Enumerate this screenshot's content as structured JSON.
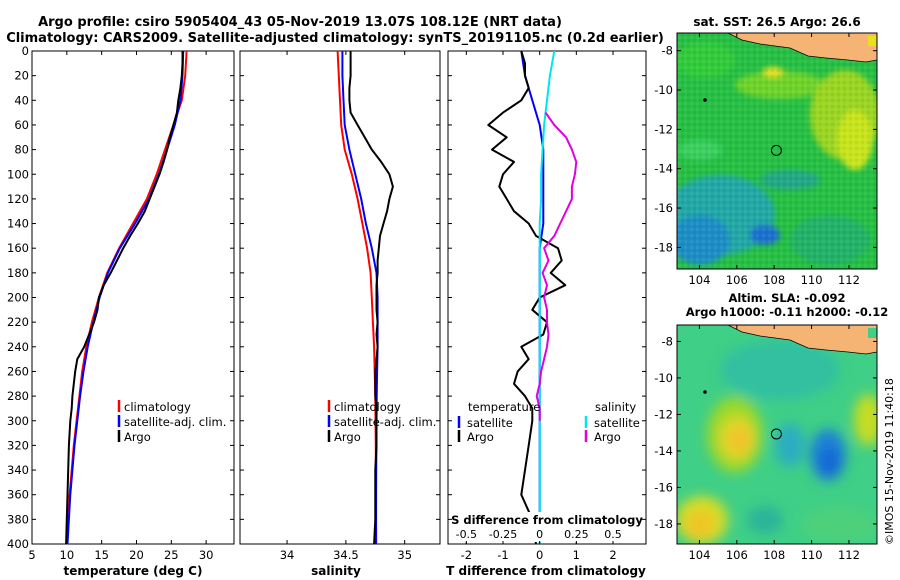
{
  "title": {
    "line1": "Argo profile: csiro 5905404_43 05-Nov-2019 13.07S 108.12E (NRT data)",
    "line2": "Climatology: CARS2009. Satellite-adjusted climatology: synTS_20191105.nc (0.2d earlier)"
  },
  "colors": {
    "climatology": "#ff0000",
    "satellite": "#0000ff",
    "argo": "#000000",
    "satellite_salinity": "#00e5ee",
    "argo_salinity": "#e000e0"
  },
  "chart_data": [
    {
      "type": "line",
      "name": "temperature",
      "xlabel": "temperature (deg C)",
      "ylabel": "",
      "xlim": [
        5,
        34
      ],
      "ylim": [
        400,
        0
      ],
      "xticks": [
        "5",
        "10",
        "15",
        "20",
        "25",
        "30"
      ],
      "yticks": [
        "0",
        "20",
        "40",
        "60",
        "80",
        "100",
        "120",
        "140",
        "160",
        "180",
        "200",
        "220",
        "240",
        "260",
        "280",
        "300",
        "320",
        "340",
        "360",
        "380",
        "400"
      ],
      "legend": [
        "climatology",
        "satellite-adj. clim.",
        "Argo"
      ],
      "series": [
        {
          "name": "climatology",
          "color": "#ff0000",
          "depth": [
            0,
            20,
            40,
            60,
            80,
            100,
            120,
            140,
            160,
            180,
            200,
            220,
            240,
            260,
            280,
            300,
            320,
            340,
            360,
            380,
            400
          ],
          "values": [
            27.2,
            27.0,
            26.5,
            25.3,
            24.1,
            22.9,
            21.5,
            19.5,
            17.5,
            15.8,
            14.6,
            13.6,
            12.8,
            12.2,
            11.8,
            11.4,
            11.0,
            10.7,
            10.4,
            10.2,
            10.0
          ]
        },
        {
          "name": "satellite-adj. clim.",
          "color": "#0000ff",
          "depth": [
            0,
            20,
            40,
            60,
            80,
            100,
            120,
            140,
            160,
            180,
            200,
            220,
            240,
            260,
            280,
            300,
            320,
            340,
            360,
            380,
            400
          ],
          "values": [
            26.7,
            26.6,
            26.3,
            25.5,
            24.4,
            23.2,
            21.8,
            19.8,
            17.6,
            15.9,
            14.7,
            13.8,
            13.0,
            12.4,
            11.9,
            11.5,
            11.1,
            10.8,
            10.5,
            10.3,
            10.1
          ]
        },
        {
          "name": "Argo",
          "color": "#000000",
          "depth": [
            0,
            10,
            20,
            30,
            40,
            50,
            60,
            70,
            80,
            90,
            100,
            110,
            120,
            130,
            140,
            150,
            160,
            170,
            180,
            190,
            200,
            210,
            220,
            230,
            240,
            250,
            260,
            270,
            280,
            290,
            300,
            320,
            340,
            360,
            380,
            400
          ],
          "values": [
            26.6,
            26.6,
            26.5,
            26.3,
            26.0,
            25.8,
            25.3,
            24.8,
            24.4,
            23.9,
            23.3,
            22.6,
            21.9,
            21.2,
            20.2,
            19.1,
            18.1,
            17.2,
            16.3,
            15.3,
            14.6,
            14.4,
            13.9,
            13.2,
            12.5,
            11.5,
            11.2,
            11.0,
            10.8,
            10.7,
            10.5,
            10.3,
            10.2,
            10.1,
            10.0,
            9.9
          ]
        }
      ]
    },
    {
      "type": "line",
      "name": "salinity",
      "xlabel": "salinity",
      "xlim": [
        33.6,
        35.3
      ],
      "ylim": [
        400,
        0
      ],
      "xticks": [
        "34",
        "34.5",
        "35"
      ],
      "legend": [
        "climatology",
        "satellite-adj. clim.",
        "Argo"
      ],
      "series": [
        {
          "name": "climatology",
          "color": "#ff0000",
          "depth": [
            0,
            20,
            40,
            60,
            80,
            100,
            120,
            140,
            160,
            180,
            200,
            220,
            240,
            260,
            280,
            300,
            320,
            340,
            360,
            380,
            400
          ],
          "values": [
            34.43,
            34.44,
            34.45,
            34.46,
            34.49,
            34.55,
            34.6,
            34.64,
            34.68,
            34.71,
            34.72,
            34.73,
            34.74,
            34.745,
            34.75,
            34.752,
            34.754,
            34.755,
            34.756,
            34.757,
            34.758
          ]
        },
        {
          "name": "satellite-adj. clim.",
          "color": "#0000ff",
          "depth": [
            0,
            20,
            40,
            60,
            80,
            100,
            120,
            140,
            160,
            180,
            200,
            220,
            240,
            260,
            280,
            300,
            320,
            340,
            360,
            380,
            400
          ],
          "values": [
            34.47,
            34.47,
            34.48,
            34.49,
            34.53,
            34.58,
            34.63,
            34.67,
            34.72,
            34.76,
            34.77,
            34.77,
            34.77,
            34.765,
            34.762,
            34.76,
            34.759,
            34.758,
            34.757,
            34.756,
            34.755
          ]
        },
        {
          "name": "Argo",
          "color": "#000000",
          "depth": [
            0,
            10,
            20,
            30,
            40,
            50,
            60,
            70,
            80,
            90,
            100,
            110,
            120,
            130,
            140,
            150,
            160,
            170,
            180,
            190,
            200,
            210,
            220,
            230,
            240,
            250,
            260,
            270,
            280,
            290,
            300,
            320,
            340,
            360,
            380,
            400
          ],
          "values": [
            34.54,
            34.54,
            34.54,
            34.53,
            34.53,
            34.54,
            34.6,
            34.66,
            34.72,
            34.8,
            34.87,
            34.9,
            34.87,
            34.85,
            34.82,
            34.79,
            34.78,
            34.77,
            34.77,
            34.76,
            34.76,
            34.76,
            34.77,
            34.76,
            34.77,
            34.76,
            34.75,
            34.75,
            34.75,
            34.76,
            34.76,
            34.76,
            34.75,
            34.75,
            34.75,
            34.74
          ]
        }
      ]
    },
    {
      "type": "line",
      "name": "differences",
      "xlabel": "T difference from climatology",
      "xlabel_top": "S difference from climatology",
      "xlim": [
        -2.5,
        2.9
      ],
      "ylim": [
        400,
        0
      ],
      "xticks": [
        "-2",
        "-1",
        "0",
        "1",
        "2"
      ],
      "xticks_top": [
        "-0.5",
        "-0.25",
        "0",
        "0.25",
        "0.5"
      ],
      "legend_temperature": {
        "title": "temperature",
        "items": [
          "satellite",
          "Argo"
        ]
      },
      "legend_salinity": {
        "title": "salinity",
        "items": [
          "satellite",
          "Argo"
        ]
      },
      "series": [
        {
          "name": "temperature satellite",
          "color": "#0000ff",
          "depth": [
            0,
            20,
            40,
            60,
            80,
            100,
            120,
            140,
            160,
            180,
            200,
            220,
            240,
            260,
            280,
            300,
            320,
            340,
            360,
            380,
            400
          ],
          "values": [
            -0.5,
            -0.4,
            -0.2,
            0.0,
            0.1,
            0.1,
            0.1,
            0.1,
            0.0,
            0.0,
            0.0,
            0.0,
            0.0,
            0.0,
            0.0,
            0.0,
            0.0,
            0.0,
            0.0,
            0.0,
            0.0
          ]
        },
        {
          "name": "temperature Argo",
          "color": "#000000",
          "depth": [
            0,
            10,
            20,
            30,
            40,
            50,
            60,
            70,
            80,
            90,
            100,
            110,
            120,
            130,
            140,
            150,
            160,
            170,
            180,
            190,
            200,
            210,
            220,
            230,
            240,
            250,
            260,
            270,
            280,
            290,
            300,
            320,
            340,
            360,
            380,
            400
          ],
          "values": [
            -0.5,
            -0.4,
            -0.4,
            -0.3,
            -0.5,
            -1.0,
            -1.4,
            -0.9,
            -1.3,
            -0.7,
            -1.0,
            -1.1,
            -0.9,
            -0.7,
            -0.3,
            -0.1,
            0.5,
            0.6,
            0.3,
            0.7,
            0.0,
            -0.2,
            0.2,
            0.1,
            -0.5,
            -0.3,
            -0.6,
            -0.7,
            -0.4,
            -0.2,
            -0.2,
            -0.3,
            -0.4,
            -0.5,
            -0.2,
            -0.1
          ]
        },
        {
          "name": "salinity satellite",
          "color": "#00e5ee",
          "depth": [
            0,
            20,
            40,
            60,
            80,
            100,
            120,
            140,
            160,
            180,
            200,
            220,
            240,
            260,
            280,
            300,
            320,
            340,
            360,
            380,
            400
          ],
          "values": [
            0.1,
            0.07,
            0.05,
            0.03,
            0.02,
            0.01,
            0.01,
            0.0,
            0.0,
            0.0,
            0.0,
            0.0,
            0.0,
            0.0,
            0.0,
            0.0,
            0.0,
            0.0,
            0.0,
            0.0,
            0.0
          ]
        },
        {
          "name": "salinity Argo",
          "color": "#e000e0",
          "depth": [
            0,
            10,
            20,
            30,
            40,
            50,
            60,
            70,
            80,
            90,
            100,
            110,
            120,
            130,
            140,
            150,
            160,
            170,
            180,
            190,
            200,
            210,
            220,
            230,
            240,
            250,
            260,
            270,
            280,
            290,
            300
          ],
          "values": [
            null,
            null,
            null,
            null,
            null,
            0.04,
            0.1,
            0.18,
            0.22,
            0.25,
            0.24,
            0.22,
            0.22,
            0.18,
            0.14,
            0.1,
            0.03,
            0.06,
            0.02,
            0.05,
            0.03,
            0.05,
            0.05,
            0.06,
            0.05,
            0.03,
            0.01,
            0.0,
            -0.02,
            0.0,
            0.0
          ]
        }
      ]
    },
    {
      "type": "heatmap",
      "name": "sst_map",
      "title": "sat. SST: 26.5 Argo: 26.6",
      "xticks": [
        "104",
        "106",
        "108",
        "110",
        "112"
      ],
      "yticks": [
        "-8",
        "-10",
        "-12",
        "-14",
        "-16",
        "-18"
      ],
      "xlim": [
        102.8,
        113.5
      ],
      "ylim": [
        -19.1,
        -7.1
      ],
      "argo_position": {
        "lon": 108.12,
        "lat": -13.07
      }
    },
    {
      "type": "heatmap",
      "name": "sla_map",
      "title_line1": "Altim. SLA: -0.092",
      "title_line2": "Argo h1000: -0.11 h2000: -0.12",
      "xticks": [
        "104",
        "106",
        "108",
        "110",
        "112"
      ],
      "yticks": [
        "-8",
        "-10",
        "-12",
        "-14",
        "-16",
        "-18"
      ],
      "xlim": [
        102.8,
        113.5
      ],
      "ylim": [
        -19.1,
        -7.1
      ],
      "argo_position": {
        "lon": 108.12,
        "lat": -13.07
      }
    }
  ],
  "footer": {
    "credit": "©IMOS 15-Nov-2019 11:40:18"
  }
}
